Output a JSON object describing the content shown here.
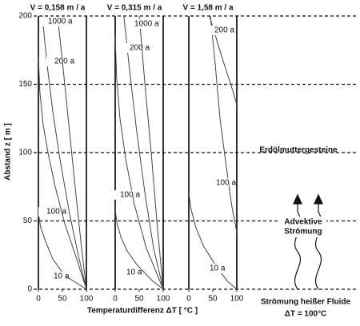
{
  "chart_data": [
    {
      "type": "line",
      "title": "V = 0,158 m / a",
      "ylabel": "Abstand z [ m ]",
      "xlim": [
        0,
        100
      ],
      "xticks": [
        0,
        50,
        100
      ],
      "ylim": [
        0,
        200
      ],
      "yticks": [
        0,
        50,
        100,
        150,
        200
      ],
      "grid": true,
      "color": "#444444",
      "series": [
        {
          "name": "10 a",
          "x": [
            0,
            5,
            15,
            30,
            55,
            100
          ],
          "values": [
            55,
            45,
            35,
            22,
            10,
            0
          ]
        },
        {
          "name": "100 a",
          "x": [
            0,
            3,
            10,
            20,
            35,
            55,
            80,
            100
          ],
          "values": [
            170,
            145,
            120,
            100,
            75,
            48,
            22,
            0
          ]
        },
        {
          "name": "200 a",
          "x": [
            8,
            18,
            30,
            45,
            65,
            85,
            100
          ],
          "values": [
            200,
            165,
            130,
            95,
            55,
            22,
            0
          ]
        },
        {
          "name": "1000 a",
          "x": [
            40,
            52,
            65,
            78,
            90,
            100
          ],
          "values": [
            200,
            160,
            115,
            70,
            30,
            0
          ]
        }
      ]
    },
    {
      "type": "line",
      "title": "V = 0,315 m / a",
      "xlabel": "Temperaturdifferenz ΔT [ °C ]",
      "xlim": [
        0,
        100
      ],
      "xticks": [
        0,
        50,
        100
      ],
      "ylim": [
        0,
        200
      ],
      "color": "#444444",
      "series": [
        {
          "name": "10 a",
          "x": [
            0,
            4,
            12,
            25,
            45,
            75,
            100
          ],
          "values": [
            58,
            48,
            38,
            28,
            18,
            7,
            0
          ]
        },
        {
          "name": "100 a",
          "x": [
            0,
            3,
            10,
            22,
            40,
            65,
            100
          ],
          "values": [
            185,
            155,
            125,
            95,
            62,
            30,
            0
          ]
        },
        {
          "name": "200 a",
          "x": [
            18,
            30,
            45,
            62,
            80,
            100
          ],
          "values": [
            200,
            160,
            115,
            70,
            30,
            0
          ]
        },
        {
          "name": "1000 a",
          "x": [
            50,
            62,
            75,
            88,
            100
          ],
          "values": [
            200,
            150,
            100,
            45,
            0
          ]
        }
      ]
    },
    {
      "type": "line",
      "title": "V = 1,58 m / a",
      "xlim": [
        0,
        100
      ],
      "xticks": [
        0,
        50,
        100
      ],
      "ylim": [
        0,
        200
      ],
      "color": "#444444",
      "series": [
        {
          "name": "10 a",
          "x": [
            0,
            5,
            15,
            30,
            55,
            80,
            100
          ],
          "values": [
            70,
            58,
            45,
            32,
            18,
            6,
            0
          ]
        },
        {
          "name": "100 a",
          "x": [
            45,
            55,
            65,
            78,
            90,
            100
          ],
          "values": [
            200,
            165,
            125,
            90,
            60,
            42
          ]
        },
        {
          "name": "200 a",
          "x": [
            43,
            60,
            78,
            92,
            100
          ],
          "values": [
            200,
            180,
            160,
            145,
            135
          ]
        }
      ]
    }
  ],
  "annotations": [
    "Erdölmuttergesteine",
    "Advektive",
    "Strömung",
    "Strömung heißer Fluide",
    "ΔT = 100°C"
  ]
}
